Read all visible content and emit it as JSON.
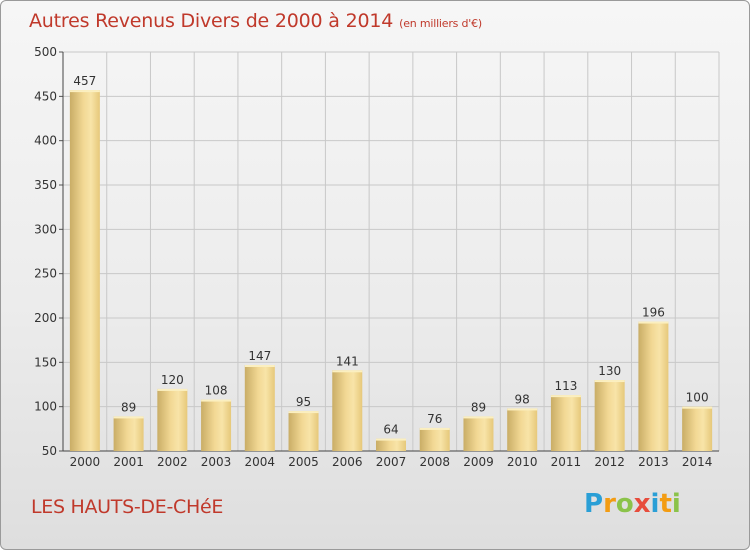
{
  "title": "Autres Revenus Divers de 2000 à 2014",
  "title_unit": "(en milliers d'€)",
  "commune": "LES HAUTS-DE-CHéE",
  "logo": {
    "letters": [
      "P",
      "r",
      "o",
      "x",
      "i",
      "t",
      "i"
    ],
    "colors": [
      "#2a9fd6",
      "#f39c12",
      "#8bc34a",
      "#e74c3c",
      "#2a9fd6",
      "#f39c12",
      "#8bc34a"
    ]
  },
  "colors": {
    "title": "#c0392b",
    "bar_light": "#f7e0a0",
    "bar_dark": "#c9ad66"
  },
  "chart_data": {
    "type": "bar",
    "categories": [
      "2000",
      "2001",
      "2002",
      "2003",
      "2004",
      "2005",
      "2006",
      "2007",
      "2008",
      "2009",
      "2010",
      "2011",
      "2012",
      "2013",
      "2014"
    ],
    "values": [
      457,
      89,
      120,
      108,
      147,
      95,
      141,
      64,
      76,
      89,
      98,
      113,
      130,
      196,
      100
    ],
    "ylim": [
      50,
      500
    ],
    "yticks": [
      50,
      100,
      150,
      200,
      250,
      300,
      350,
      400,
      450,
      500
    ],
    "grid": true
  }
}
